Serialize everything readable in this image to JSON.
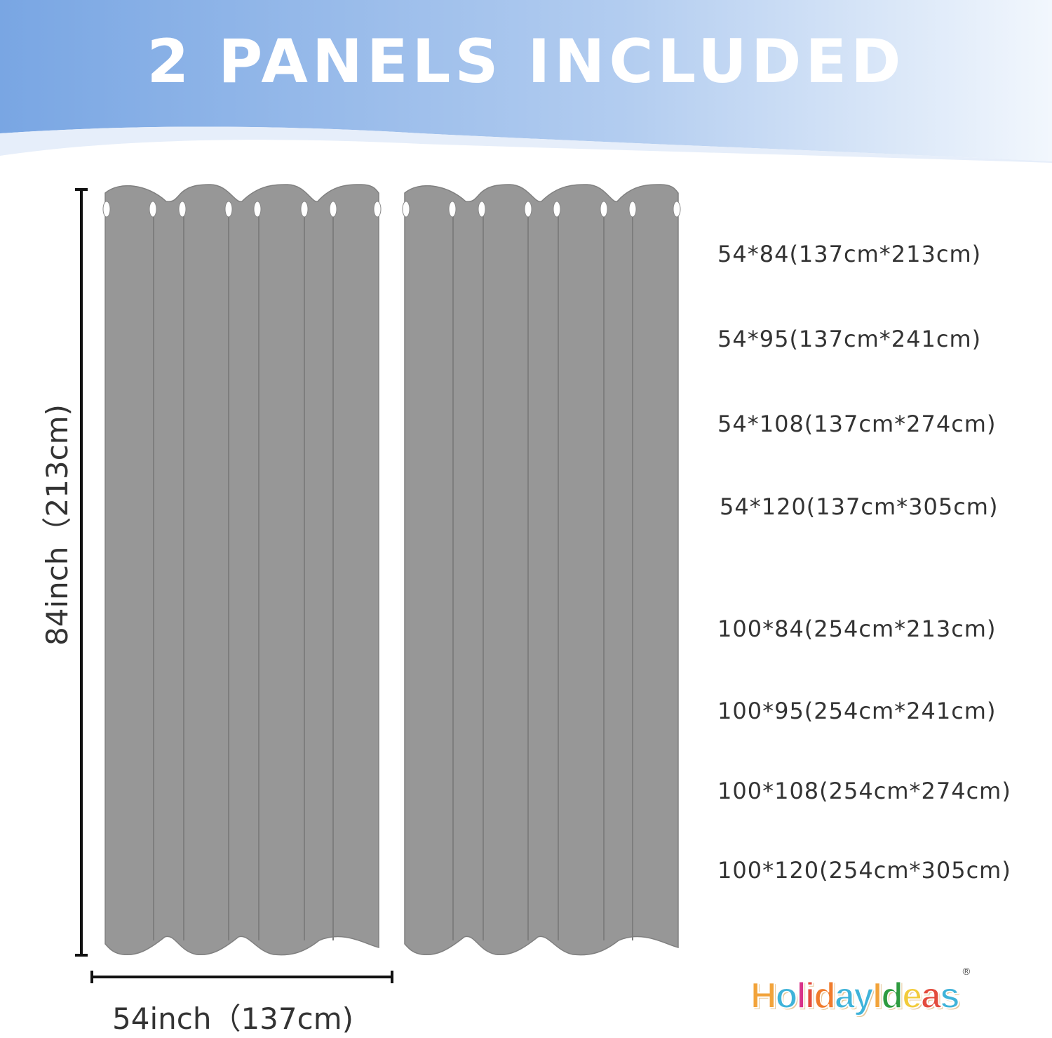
{
  "header": {
    "title": "2 PANELS INCLUDED"
  },
  "dimensions": {
    "height_label": "84inch（213cm)",
    "width_label": "54inch（137cm)"
  },
  "sizes": [
    "54*84(137cm*213cm)",
    "54*95(137cm*241cm)",
    "54*108(137cm*274cm)",
    "54*120(137cm*305cm)",
    "100*84(254cm*213cm)",
    "100*95(254cm*241cm)",
    "100*108(254cm*274cm)",
    "100*120(254cm*305cm)"
  ],
  "brand": {
    "name": "HolidayIdeas",
    "registered": "®",
    "letter_colors": [
      "#f2a33a",
      "#3fb3d9",
      "#d8338a",
      "#e34b3c",
      "#f07b2c",
      "#3fb3d9",
      "#3fb3d9",
      "#f2a33a",
      "#2e9b3f",
      "#f2cb3a",
      "#e34b3c",
      "#3fb3d9",
      "#2e9b3f"
    ]
  },
  "colors": {
    "curtain": "#979797",
    "banner_left": "#7aa7e3",
    "banner_right": "#eef4fc",
    "text": "#333333"
  }
}
